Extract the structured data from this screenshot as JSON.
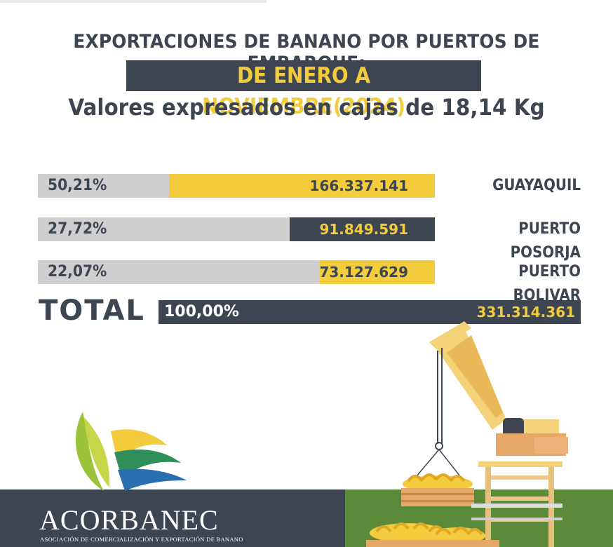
{
  "header": {
    "title_line1": "EXPORTACIONES DE BANANO POR PUERTOS DE  EMBARQUE:",
    "title_line2": "DE ENERO A NOVIEMBRE(2024)",
    "subtitle": "Valores expresados en cajas de 18,14 Kg"
  },
  "chart_data": {
    "type": "bar",
    "orientation": "horizontal",
    "categories": [
      "GUAYAQUIL",
      "PUERTO POSORJA",
      "PUERTO BOLIVAR"
    ],
    "percent_labels": [
      "50,21%",
      "27,72%",
      "22,07%"
    ],
    "value_labels": [
      "166.337.141",
      "91.849.591",
      "73.127.629"
    ],
    "percent": [
      50.21,
      27.72,
      22.07
    ],
    "values": [
      166337141,
      91849591,
      73127629
    ],
    "bar_colors": [
      "#f2cc3c",
      "#3d4550",
      "#f2cc3c"
    ],
    "value_text_colors": [
      "#3d4550",
      "#f2cc3c",
      "#3d4550"
    ],
    "total": {
      "label": "TOTAL",
      "percent_label": "100,00%",
      "value_label": "331.314.361",
      "value": 331314361
    }
  },
  "footer": {
    "brand": "ACORBANEC",
    "brand_subtitle": "ASOCIACIÓN DE COMERCIALIZACIÓN Y EXPORTACIÓN DE BANANO",
    "logo_icon": "leaf-logo-icon",
    "illustration_icon": "crane-bananas-icon"
  },
  "colors": {
    "dark": "#3d4550",
    "yellow": "#f2cc3c",
    "grey": "#cfcfcf",
    "green": "#5b8a3b"
  }
}
